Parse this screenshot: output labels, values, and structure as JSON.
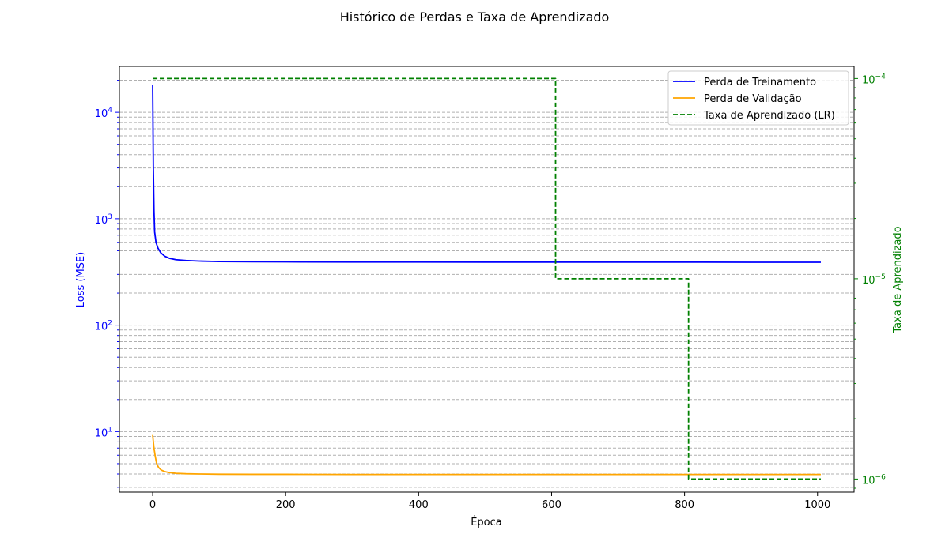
{
  "chart_data": {
    "type": "line",
    "title": "Histórico de Perdas e Taxa de Aprendizado",
    "xlabel": "Época",
    "ylabel_left": "Loss (MSE)",
    "ylabel_right": "Taxa de Aprendizado",
    "x_ticks": [
      0,
      200,
      400,
      600,
      800,
      1000
    ],
    "xlim": [
      -50,
      1055
    ],
    "yscale_left": "log",
    "ylim_left": [
      2.7,
      27000
    ],
    "y_ticks_left": [
      {
        "value": 10,
        "base": "10",
        "exp": "1"
      },
      {
        "value": 100,
        "base": "10",
        "exp": "2"
      },
      {
        "value": 1000,
        "base": "10",
        "exp": "3"
      },
      {
        "value": 10000,
        "base": "10",
        "exp": "4"
      }
    ],
    "yscale_right": "log",
    "ylim_right": [
      8.6e-07,
      0.000115
    ],
    "y_ticks_right": [
      {
        "value": 1e-06,
        "base": "10",
        "exp": "−6"
      },
      {
        "value": 1e-05,
        "base": "10",
        "exp": "−5"
      },
      {
        "value": 0.0001,
        "base": "10",
        "exp": "−4"
      }
    ],
    "grid": "y-minor-dashed",
    "legend_position": "top-right",
    "series": [
      {
        "name": "Perda de Treinamento",
        "axis": "left",
        "color": "#0000ff",
        "style": "solid",
        "x": [
          0,
          1,
          2,
          3,
          5,
          8,
          12,
          18,
          25,
          35,
          50,
          70,
          100,
          150,
          200,
          300,
          400,
          500,
          600,
          700,
          800,
          900,
          1005
        ],
        "y": [
          18000,
          3000,
          1200,
          750,
          600,
          530,
          480,
          445,
          425,
          412,
          405,
          400,
          396,
          394,
          393,
          392,
          392,
          391,
          391,
          391,
          391,
          390,
          390
        ]
      },
      {
        "name": "Perda de Validação",
        "axis": "left",
        "color": "#ffa500",
        "style": "solid",
        "x": [
          0,
          2,
          4,
          6,
          9,
          13,
          18,
          25,
          35,
          50,
          70,
          100,
          150,
          200,
          300,
          400,
          500,
          600,
          700,
          800,
          900,
          1005
        ],
        "y": [
          9.3,
          7.0,
          5.8,
          5.0,
          4.6,
          4.35,
          4.22,
          4.12,
          4.06,
          4.02,
          4.0,
          3.98,
          3.97,
          3.97,
          3.96,
          3.96,
          3.96,
          3.96,
          3.96,
          3.96,
          3.96,
          3.96
        ]
      },
      {
        "name": "Taxa de Aprendizado (LR)",
        "axis": "right",
        "color": "#008000",
        "style": "dashed",
        "x": [
          0,
          606,
          606,
          806,
          806,
          1005
        ],
        "y": [
          0.0001,
          0.0001,
          1e-05,
          1e-05,
          1e-06,
          1e-06
        ]
      }
    ]
  }
}
